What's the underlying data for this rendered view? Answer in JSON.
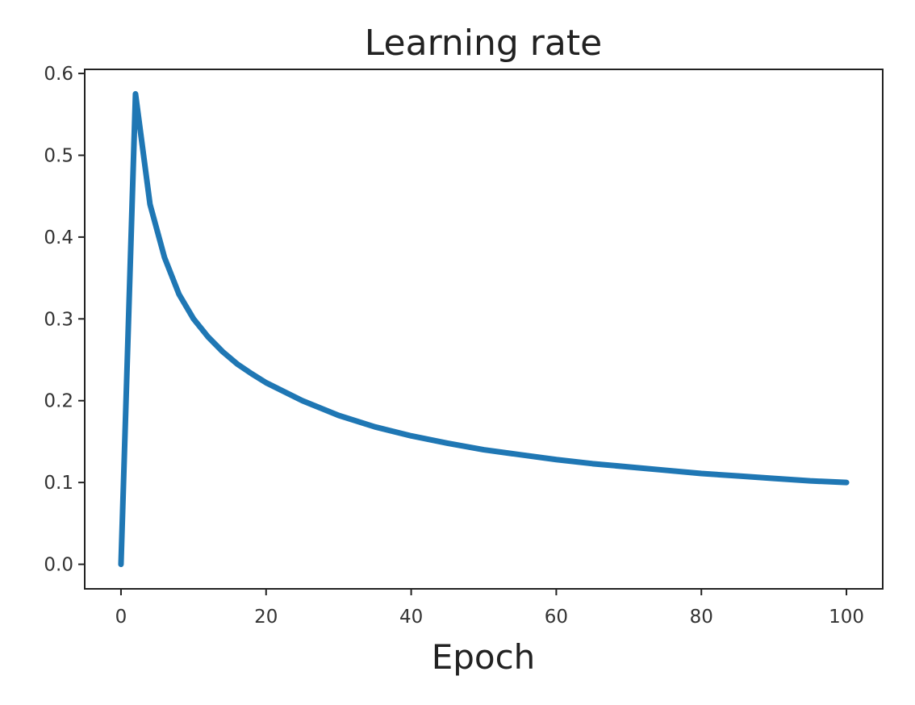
{
  "chart_data": {
    "type": "line",
    "title": "Learning rate",
    "xlabel": "Epoch",
    "ylabel": "",
    "xlim": [
      -5,
      105
    ],
    "ylim": [
      -0.03,
      0.605
    ],
    "x_ticks": [
      0,
      20,
      40,
      60,
      80,
      100
    ],
    "x_tick_labels": [
      "0",
      "20",
      "40",
      "60",
      "80",
      "100"
    ],
    "y_ticks": [
      0.0,
      0.1,
      0.2,
      0.3,
      0.4,
      0.5,
      0.6
    ],
    "y_tick_labels": [
      "0.0",
      "0.1",
      "0.2",
      "0.3",
      "0.4",
      "0.5",
      "0.6"
    ],
    "grid": false,
    "series": [
      {
        "color": "#1f77b4",
        "x": [
          0,
          2,
          4,
          6,
          8,
          10,
          12,
          14,
          16,
          18,
          20,
          25,
          30,
          35,
          40,
          45,
          50,
          55,
          60,
          65,
          70,
          75,
          80,
          85,
          90,
          95,
          100
        ],
        "y": [
          0.0,
          0.575,
          0.44,
          0.375,
          0.33,
          0.3,
          0.278,
          0.26,
          0.245,
          0.233,
          0.222,
          0.2,
          0.182,
          0.168,
          0.157,
          0.148,
          0.14,
          0.134,
          0.128,
          0.123,
          0.119,
          0.115,
          0.111,
          0.108,
          0.105,
          0.102,
          0.1
        ]
      }
    ]
  }
}
